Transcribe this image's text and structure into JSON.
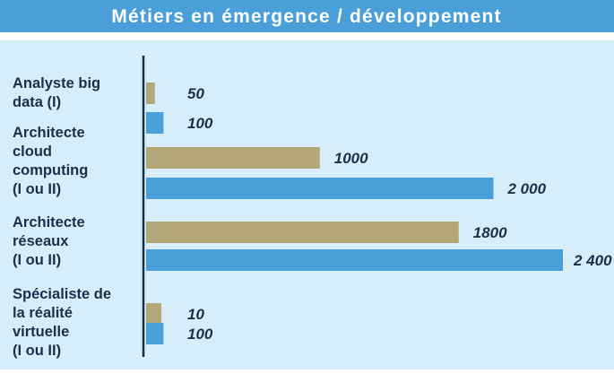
{
  "chart_data": {
    "type": "bar",
    "orientation": "horizontal",
    "title": "Métiers en émergence / développement",
    "categories": [
      {
        "lines": [
          "Analyste big",
          "data (I)"
        ]
      },
      {
        "lines": [
          "Architecte",
          "cloud",
          "computing",
          " (I ou II)"
        ]
      },
      {
        "lines": [
          "Architecte",
          "réseaux",
          " (I ou II)"
        ]
      },
      {
        "lines": [
          "Spécialiste de",
          "la réalité",
          "virtuelle",
          "(I ou II)"
        ]
      }
    ],
    "series": [
      {
        "color": "#b3a677",
        "values": [
          50,
          1000,
          1800,
          10
        ],
        "labels": [
          "50",
          "1000",
          "1800",
          "10"
        ]
      },
      {
        "color": "#4aa0d9",
        "values": [
          100,
          2000,
          2400,
          100
        ],
        "labels": [
          "100",
          "2 000",
          "2 400",
          "100"
        ]
      }
    ],
    "xlim": [
      0,
      2400
    ],
    "grid": false,
    "legend": "none",
    "colors": {
      "title_bg": "#4a9fd8",
      "title_text": "#ffffff",
      "panel_bg": "#d8edfa",
      "axis": "#1b2f4a",
      "label_text": "#1b2f4a"
    }
  }
}
